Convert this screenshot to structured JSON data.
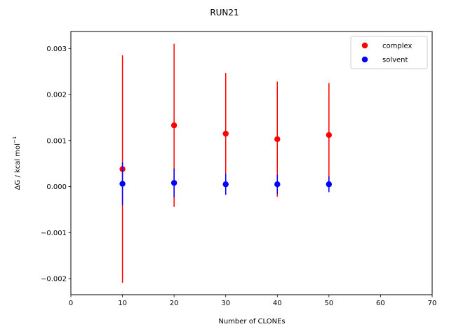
{
  "chart_data": {
    "type": "scatter",
    "title": "RUN21",
    "xlabel": "Number of CLONEs",
    "ylabel_main": "ΔG / kcal mol",
    "ylabel_sup": "−1",
    "xlim": [
      0,
      70
    ],
    "ylim": [
      -0.00235,
      0.00337
    ],
    "xticks": [
      0,
      10,
      20,
      30,
      40,
      50,
      60,
      70
    ],
    "xtick_labels": [
      "0",
      "10",
      "20",
      "30",
      "40",
      "50",
      "60",
      "70"
    ],
    "yticks": [
      -0.002,
      -0.001,
      0.0,
      0.001,
      0.002,
      0.003
    ],
    "ytick_labels": [
      "−0.002",
      "−0.001",
      "0.000",
      "0.001",
      "0.002",
      "0.003"
    ],
    "grid": false,
    "legend_position": "top-right",
    "series": [
      {
        "name": "complex",
        "color": "#ff0000",
        "x": [
          10,
          20,
          30,
          40,
          50
        ],
        "y": [
          0.00038,
          0.00133,
          0.00115,
          0.00103,
          0.00112
        ],
        "err": [
          0.00247,
          0.00177,
          0.00132,
          0.00125,
          0.00113
        ]
      },
      {
        "name": "solvent",
        "color": "#0000ff",
        "x": [
          10,
          20,
          30,
          40,
          50
        ],
        "y": [
          6e-05,
          8e-05,
          5e-05,
          5e-05,
          5e-05
        ],
        "err": [
          0.00047,
          0.00031,
          0.00023,
          0.00021,
          0.00017
        ]
      }
    ]
  }
}
